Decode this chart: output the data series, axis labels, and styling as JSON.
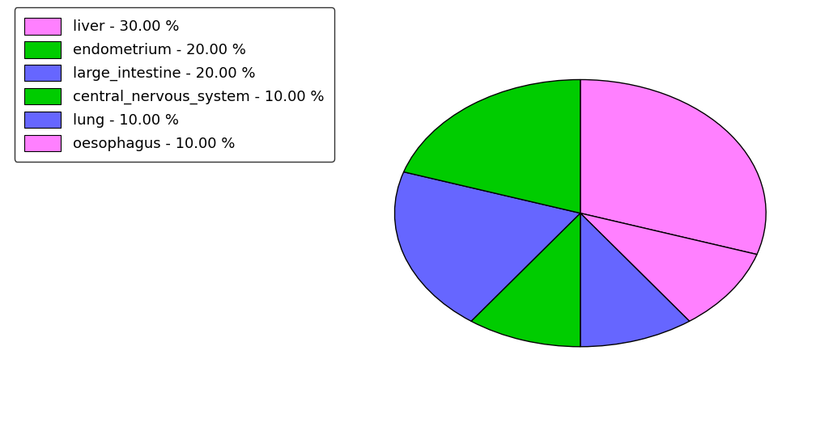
{
  "labels": [
    "liver",
    "oesophagus",
    "lung",
    "central_nervous_system",
    "large_intestine",
    "endometrium"
  ],
  "values": [
    30,
    10,
    10,
    10,
    20,
    20
  ],
  "colors": [
    "#FF80FF",
    "#FF80FF",
    "#6666FF",
    "#00CC00",
    "#6666FF",
    "#00CC00"
  ],
  "legend_labels": [
    "liver - 30.00 %",
    "endometrium - 20.00 %",
    "large_intestine - 20.00 %",
    "central_nervous_system - 10.00 %",
    "lung - 10.00 %",
    "oesophagus - 10.00 %"
  ],
  "legend_colors": [
    "#FF80FF",
    "#00CC00",
    "#6666FF",
    "#00CC00",
    "#6666FF",
    "#FF80FF"
  ],
  "startangle": 90,
  "figsize": [
    10.24,
    5.38
  ],
  "dpi": 100,
  "ellipse_ratio": 0.72
}
